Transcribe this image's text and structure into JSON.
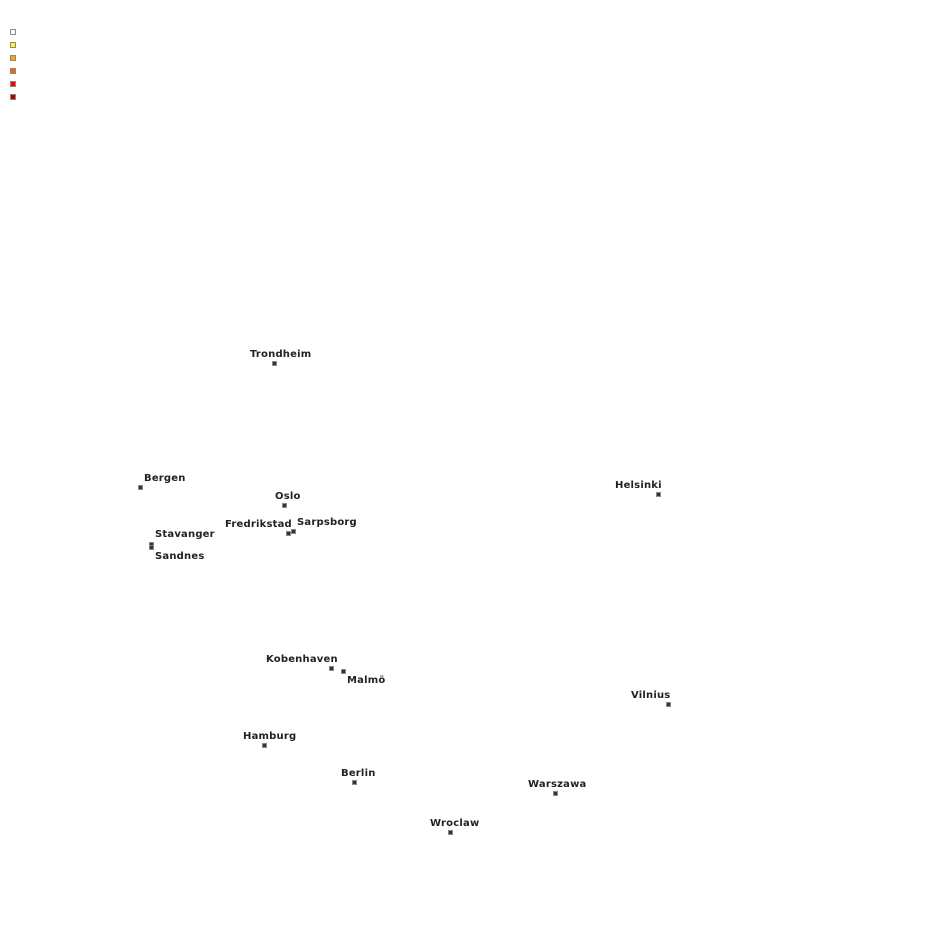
{
  "legend": {
    "colors": [
      "#ffffff",
      "#ffff00",
      "#ffa500",
      "#ff6000",
      "#ff0000",
      "#b00000"
    ]
  },
  "cities": [
    {
      "name": "Trondheim"
    },
    {
      "name": "Bergen"
    },
    {
      "name": "Oslo"
    },
    {
      "name": "Fredrikstad"
    },
    {
      "name": "Sarpsborg"
    },
    {
      "name": "Stavanger"
    },
    {
      "name": "Sandnes"
    },
    {
      "name": "Helsinki"
    },
    {
      "name": "Kobenhaven"
    },
    {
      "name": "Malmö"
    },
    {
      "name": "Vilnius"
    },
    {
      "name": "Hamburg"
    },
    {
      "name": "Berlin"
    },
    {
      "name": "Warszawa"
    },
    {
      "name": "Wroclaw"
    }
  ],
  "marker_colors": {
    "fill": "#333333",
    "border": "#888888"
  }
}
